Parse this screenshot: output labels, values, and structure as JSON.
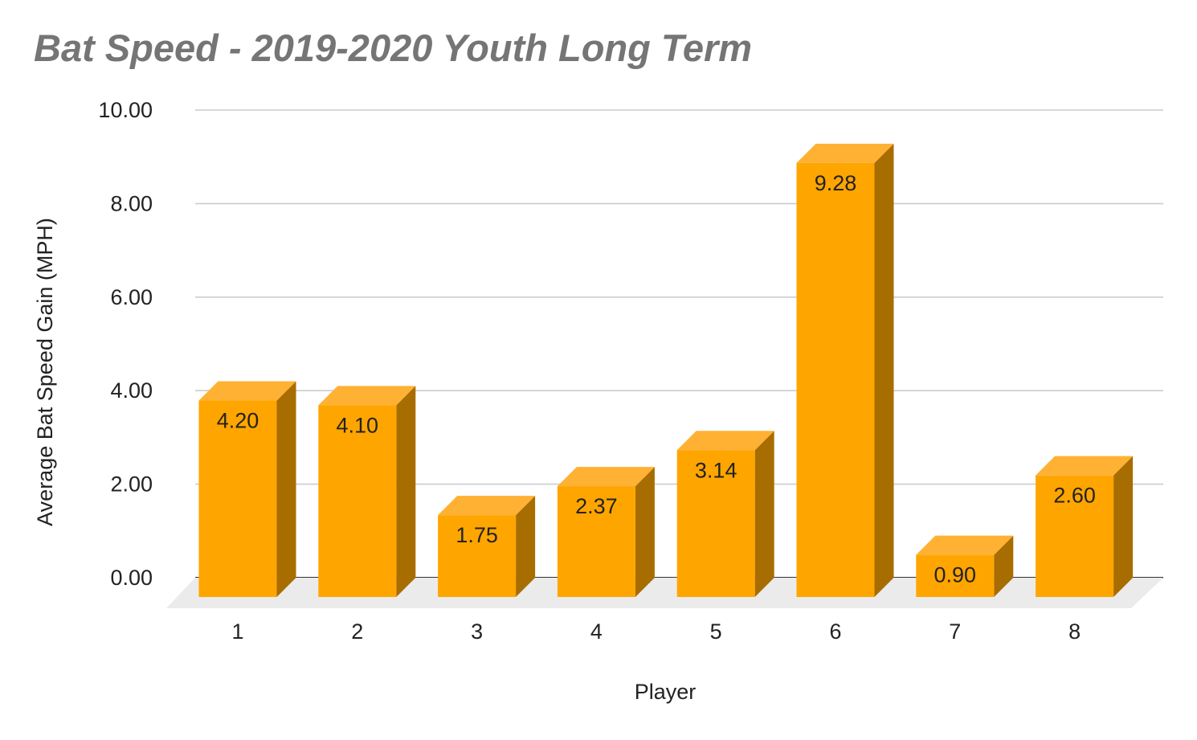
{
  "chart_data": {
    "type": "bar",
    "title": "Bat Speed - 2019-2020 Youth Long Term",
    "xlabel": "Player",
    "ylabel": "Average Bat Speed Gain (MPH)",
    "categories": [
      "1",
      "2",
      "3",
      "4",
      "5",
      "6",
      "7",
      "8"
    ],
    "values": [
      4.2,
      4.1,
      1.75,
      2.37,
      3.14,
      9.28,
      0.9,
      2.6
    ],
    "data_labels": [
      "4.20",
      "4.10",
      "1.75",
      "2.37",
      "3.14",
      "9.28",
      "0.90",
      "2.60"
    ],
    "ylim": [
      0,
      10
    ],
    "yticks": [
      "0.00",
      "2.00",
      "4.00",
      "6.00",
      "8.00",
      "10.00"
    ],
    "grid": true,
    "legend": "none",
    "style": "3d",
    "colors": {
      "bar_front": "#ffa500",
      "bar_top": "#ffb133",
      "bar_side": "#a86d00",
      "floor": "#ebebeb",
      "gridline": "#cccccc",
      "baseline": "#333333",
      "title": "#757575"
    }
  }
}
